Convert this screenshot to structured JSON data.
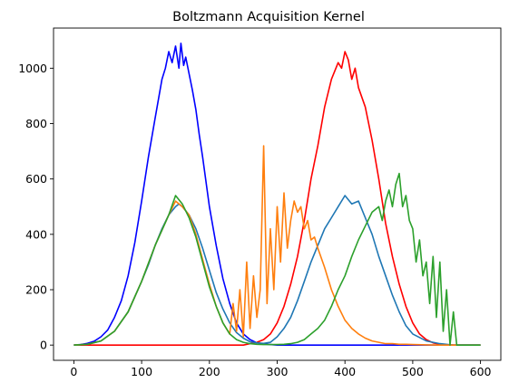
{
  "chart_data": {
    "type": "line",
    "title": "Boltzmann Acquisition Kernel",
    "xlabel": "",
    "ylabel": "",
    "xlim": [
      -30,
      630
    ],
    "ylim": [
      -55,
      1145
    ],
    "xticks": [
      0,
      100,
      200,
      300,
      400,
      500,
      600
    ],
    "yticks": [
      0,
      200,
      400,
      600,
      800,
      1000
    ],
    "grid": false,
    "legend": "none",
    "series": [
      {
        "color": "#0000ff",
        "x": [
          0,
          10,
          20,
          30,
          40,
          50,
          60,
          70,
          80,
          90,
          100,
          110,
          120,
          130,
          135,
          140,
          145,
          150,
          155,
          158,
          162,
          165,
          170,
          175,
          180,
          185,
          190,
          200,
          210,
          220,
          230,
          240,
          250,
          260,
          270,
          280,
          290,
          300,
          350,
          400,
          450,
          500,
          550,
          600
        ],
        "values": [
          0,
          2,
          6,
          14,
          30,
          55,
          100,
          160,
          250,
          370,
          520,
          680,
          820,
          960,
          1000,
          1060,
          1020,
          1080,
          1000,
          1090,
          1010,
          1040,
          980,
          920,
          850,
          760,
          680,
          500,
          360,
          240,
          150,
          80,
          40,
          20,
          8,
          4,
          2,
          0,
          0,
          0,
          0,
          0,
          0,
          0
        ]
      },
      {
        "color": "#ff0000",
        "x": [
          0,
          50,
          100,
          150,
          200,
          250,
          260,
          270,
          280,
          290,
          300,
          310,
          320,
          330,
          340,
          350,
          360,
          370,
          380,
          390,
          395,
          400,
          405,
          410,
          415,
          420,
          430,
          440,
          450,
          460,
          470,
          480,
          490,
          500,
          510,
          520,
          530,
          540,
          550,
          600
        ],
        "values": [
          0,
          0,
          0,
          0,
          0,
          0,
          5,
          10,
          20,
          40,
          80,
          140,
          220,
          320,
          450,
          600,
          720,
          860,
          960,
          1020,
          1000,
          1060,
          1030,
          960,
          1000,
          930,
          860,
          740,
          600,
          440,
          320,
          220,
          140,
          80,
          40,
          20,
          8,
          3,
          0,
          0
        ]
      },
      {
        "color": "#1f77b4",
        "x": [
          0,
          20,
          40,
          60,
          80,
          100,
          110,
          120,
          130,
          140,
          150,
          155,
          160,
          170,
          180,
          190,
          200,
          210,
          220,
          230,
          240,
          250,
          260,
          270,
          280,
          290,
          300,
          310,
          320,
          330,
          340,
          350,
          360,
          370,
          380,
          390,
          400,
          410,
          420,
          430,
          440,
          450,
          460,
          470,
          480,
          490,
          500,
          520,
          540,
          560,
          580,
          600
        ],
        "values": [
          0,
          3,
          15,
          50,
          120,
          230,
          290,
          360,
          420,
          470,
          500,
          510,
          500,
          470,
          420,
          350,
          270,
          190,
          130,
          80,
          45,
          25,
          12,
          8,
          6,
          10,
          30,
          60,
          100,
          160,
          230,
          300,
          360,
          420,
          460,
          500,
          540,
          510,
          520,
          460,
          400,
          320,
          250,
          180,
          120,
          70,
          40,
          15,
          5,
          0,
          0,
          0
        ]
      },
      {
        "color": "#ff7f0e",
        "x": [
          0,
          20,
          40,
          60,
          80,
          100,
          120,
          140,
          150,
          160,
          170,
          180,
          190,
          200,
          210,
          220,
          230,
          235,
          240,
          245,
          250,
          255,
          260,
          265,
          270,
          275,
          280,
          285,
          290,
          295,
          300,
          305,
          310,
          315,
          320,
          325,
          330,
          335,
          340,
          345,
          350,
          355,
          360,
          370,
          380,
          390,
          400,
          410,
          420,
          430,
          440,
          450,
          460,
          470,
          480,
          490,
          500,
          520,
          540,
          560,
          580,
          600
        ],
        "values": [
          0,
          3,
          15,
          50,
          120,
          230,
          360,
          470,
          520,
          500,
          470,
          400,
          310,
          220,
          140,
          80,
          40,
          150,
          50,
          200,
          30,
          300,
          60,
          250,
          100,
          200,
          720,
          150,
          420,
          200,
          500,
          300,
          550,
          350,
          450,
          520,
          480,
          500,
          420,
          450,
          380,
          390,
          350,
          280,
          200,
          140,
          90,
          60,
          40,
          25,
          15,
          10,
          5,
          5,
          3,
          3,
          2,
          1,
          0,
          0,
          0,
          0
        ]
      },
      {
        "color": "#2ca02c",
        "x": [
          0,
          20,
          40,
          60,
          80,
          100,
          120,
          140,
          150,
          160,
          170,
          180,
          190,
          200,
          210,
          220,
          230,
          240,
          250,
          260,
          270,
          280,
          290,
          300,
          310,
          320,
          330,
          340,
          350,
          360,
          370,
          380,
          390,
          400,
          410,
          420,
          430,
          440,
          450,
          455,
          460,
          465,
          470,
          475,
          480,
          485,
          490,
          495,
          500,
          505,
          510,
          515,
          520,
          525,
          530,
          535,
          540,
          545,
          550,
          555,
          560,
          565,
          570,
          580,
          590,
          600
        ],
        "values": [
          0,
          3,
          15,
          50,
          120,
          230,
          360,
          470,
          540,
          510,
          460,
          390,
          300,
          210,
          140,
          80,
          40,
          20,
          10,
          5,
          3,
          2,
          2,
          2,
          3,
          5,
          10,
          20,
          40,
          60,
          90,
          140,
          200,
          250,
          320,
          380,
          430,
          480,
          500,
          450,
          520,
          560,
          500,
          580,
          620,
          500,
          540,
          450,
          420,
          300,
          380,
          250,
          300,
          150,
          320,
          100,
          300,
          50,
          200,
          0,
          120,
          0,
          0,
          0,
          0,
          0
        ]
      }
    ]
  }
}
